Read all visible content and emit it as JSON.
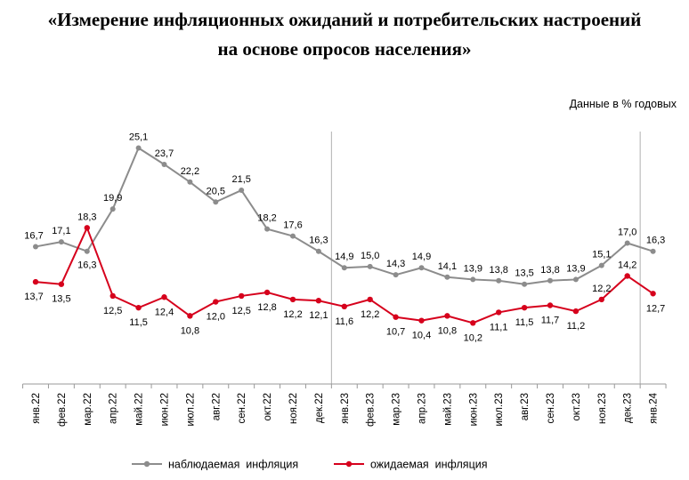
{
  "title": {
    "line1": "«Измерение инфляционных ожиданий и потребительских настроений",
    "line2": "на основе опросов населения»"
  },
  "units_label": "Данные в % годовых",
  "colors": {
    "observed": "#8c8c8c",
    "expected": "#d6001c",
    "axis": "#999999",
    "divider": "#b0b0b0"
  },
  "chart_data": {
    "type": "line",
    "title": "«Измерение инфляционных ожиданий и потребительских настроений на основе опросов населения»",
    "ylabel": "Данные в % годовых",
    "categories": [
      "янв.22",
      "фев.22",
      "мар.22",
      "апр.22",
      "май.22",
      "июн.22",
      "июл.22",
      "авг.22",
      "сен.22",
      "окт.22",
      "ноя.22",
      "дек.22",
      "янв.23",
      "фев.23",
      "мар.23",
      "апр.23",
      "май.23",
      "июн.23",
      "июл.23",
      "авг.23",
      "сен.23",
      "окт.23",
      "ноя.23",
      "дек.23",
      "янв.24"
    ],
    "series": [
      {
        "name": "наблюдаемая  инфляция",
        "key": "observed",
        "values": [
          16.7,
          17.1,
          16.3,
          19.9,
          25.1,
          23.7,
          22.2,
          20.5,
          21.5,
          18.2,
          17.6,
          16.3,
          14.9,
          15.0,
          14.3,
          14.9,
          14.1,
          13.9,
          13.8,
          13.5,
          13.8,
          13.9,
          15.1,
          17.0,
          16.3
        ]
      },
      {
        "name": "ожидаемая  инфляция",
        "key": "expected",
        "values": [
          13.7,
          13.5,
          18.3,
          12.5,
          11.5,
          12.4,
          10.8,
          12.0,
          12.5,
          12.8,
          12.2,
          12.1,
          11.6,
          12.2,
          10.7,
          10.4,
          10.8,
          10.2,
          11.1,
          11.5,
          11.7,
          11.2,
          12.2,
          14.2,
          12.7
        ]
      }
    ],
    "labels": {
      "observed": [
        "16,7",
        "17,1",
        "16,3",
        "19,9",
        "25,1",
        "23,7",
        "22,2",
        "20,5",
        "21,5",
        "18,2",
        "17,6",
        "16,3",
        "14,9",
        "15,0",
        "14,3",
        "14,9",
        "14,1",
        "13,9",
        "13,8",
        "13,5",
        "13,8",
        "13,9",
        "15,1",
        "17,0",
        "16,3"
      ],
      "expected": [
        "13,7",
        "13,5",
        "18,3",
        "12,5",
        "11,5",
        "12,4",
        "10,8",
        "12,0",
        "12,5",
        "12,8",
        "12,2",
        "12,1",
        "11,6",
        "12,2",
        "10,7",
        "10,4",
        "10,8",
        "10,2",
        "11,1",
        "11,5",
        "11,7",
        "11,2",
        "12,2",
        "14,2",
        "12,7"
      ]
    },
    "ylim": [
      5,
      26.5
    ],
    "grid": false,
    "legend": "bottom",
    "year_dividers_after": [
      "дек.22",
      "дек.23"
    ]
  }
}
